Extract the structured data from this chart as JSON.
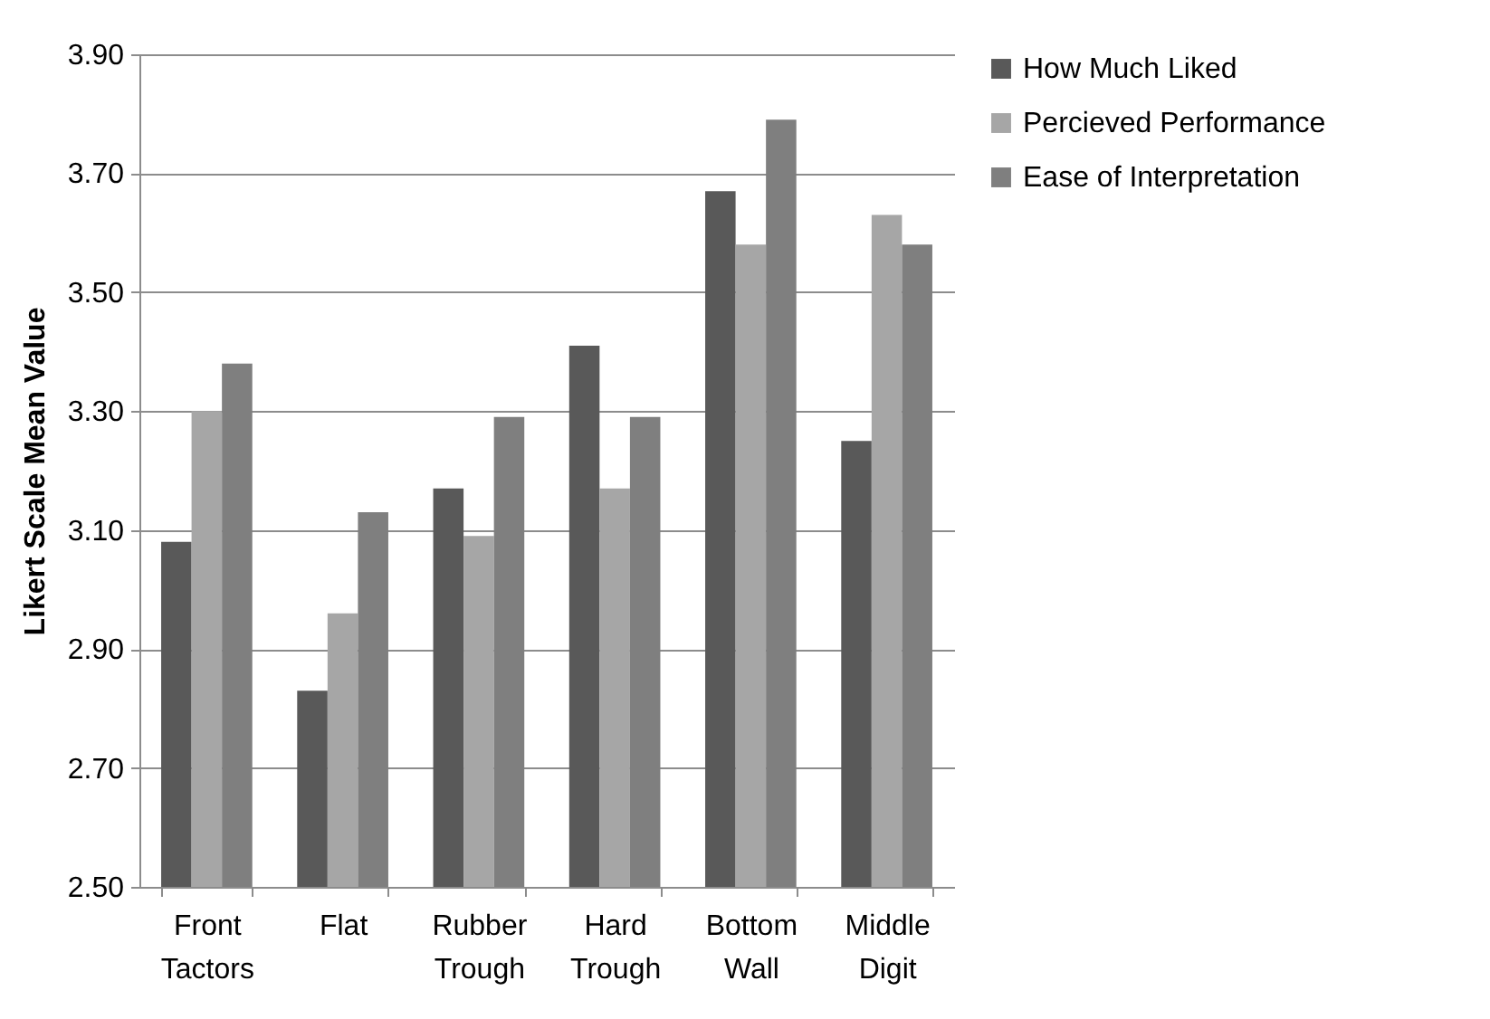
{
  "chart_data": {
    "type": "bar",
    "ylabel": "Likert Scale Mean Value",
    "categories": [
      "Front Tactors",
      "Flat",
      "Rubber Trough",
      "Hard Trough",
      "Bottom Wall",
      "Middle Digit"
    ],
    "series": [
      {
        "name": "How Much Liked",
        "color": "#595959",
        "values": [
          3.08,
          2.83,
          3.17,
          3.41,
          3.67,
          3.25
        ]
      },
      {
        "name": "Percieved Performance",
        "color": "#a6a6a6",
        "values": [
          3.3,
          2.96,
          3.09,
          3.17,
          3.58,
          3.63
        ]
      },
      {
        "name": "Ease of Interpretation",
        "color": "#7f7f7f",
        "values": [
          3.38,
          3.13,
          3.29,
          3.29,
          3.79,
          3.58
        ]
      }
    ],
    "ylim": [
      2.5,
      3.9
    ],
    "yticks": [
      {
        "value": 2.5,
        "label": "2.50"
      },
      {
        "value": 2.7,
        "label": "2.70"
      },
      {
        "value": 2.9,
        "label": "2.90"
      },
      {
        "value": 3.1,
        "label": "3.10"
      },
      {
        "value": 3.3,
        "label": "3.30"
      },
      {
        "value": 3.5,
        "label": "3.50"
      },
      {
        "value": 3.7,
        "label": "3.70"
      },
      {
        "value": 3.9,
        "label": "3.90"
      }
    ],
    "grid": "y",
    "legend": "right"
  }
}
